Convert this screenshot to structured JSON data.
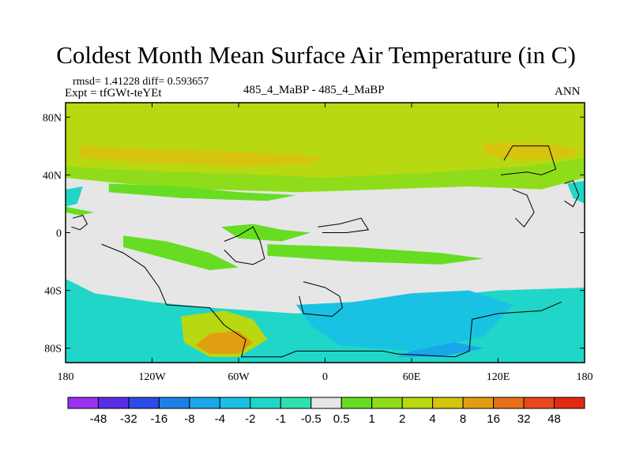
{
  "chart_data": {
    "type": "heatmap",
    "title": "Coldest Month Mean Surface Air Temperature (in C)",
    "stats_text": "rmsd= 1.41228 diff= 0.593657",
    "experiment_text": "Expt = tfGWt-teYEt",
    "comparison_text": "485_4_MaBP - 485_4_MaBP",
    "season_text": "ANN",
    "x_range": [
      -180,
      180
    ],
    "y_range": [
      -90,
      90
    ],
    "x_ticks": [
      {
        "value": -180,
        "label": "180"
      },
      {
        "value": -120,
        "label": "120W"
      },
      {
        "value": -60,
        "label": "60W"
      },
      {
        "value": 0,
        "label": "0"
      },
      {
        "value": 60,
        "label": "60E"
      },
      {
        "value": 120,
        "label": "120E"
      },
      {
        "value": 180,
        "label": "180"
      }
    ],
    "y_ticks": [
      {
        "value": 80,
        "label": "80N"
      },
      {
        "value": 40,
        "label": "40N"
      },
      {
        "value": 0,
        "label": "0"
      },
      {
        "value": -40,
        "label": "40S"
      },
      {
        "value": -80,
        "label": "80S"
      }
    ],
    "colorbar": {
      "levels": [
        "-48",
        "-32",
        "-16",
        "-8",
        "-4",
        "-2",
        "-1",
        "-0.5",
        "0.5",
        "1",
        "2",
        "4",
        "8",
        "16",
        "32",
        "48"
      ],
      "colors": [
        "#9b30f0",
        "#5a2ee6",
        "#2a4ce8",
        "#1f7fe8",
        "#1aa6ea",
        "#19c2e2",
        "#20d6c8",
        "#30e0b0",
        "#e6e6e6",
        "#66dd22",
        "#8fdd1a",
        "#b8d812",
        "#d6c40e",
        "#e29e12",
        "#e7701a",
        "#e8481e",
        "#e22a10"
      ]
    },
    "regions": [
      {
        "name": "northern-band",
        "level": 4,
        "color": "#b8d812",
        "polygon": [
          [
            -180,
            90
          ],
          [
            180,
            90
          ],
          [
            180,
            48
          ],
          [
            140,
            44
          ],
          [
            80,
            40
          ],
          [
            40,
            38
          ],
          [
            0,
            36
          ],
          [
            -40,
            38
          ],
          [
            -100,
            40
          ],
          [
            -150,
            42
          ],
          [
            -180,
            44
          ]
        ]
      },
      {
        "name": "north-warm-patch",
        "level": 8,
        "color": "#d6c40e",
        "polygon": [
          [
            -170,
            60
          ],
          [
            -120,
            58
          ],
          [
            -60,
            56
          ],
          [
            -20,
            54
          ],
          [
            0,
            52
          ],
          [
            -10,
            48
          ],
          [
            -60,
            46
          ],
          [
            -120,
            48
          ],
          [
            -170,
            52
          ]
        ]
      },
      {
        "name": "east-asia-warm-patch",
        "level": 8,
        "color": "#d6c40e",
        "polygon": [
          [
            110,
            62
          ],
          [
            150,
            62
          ],
          [
            176,
            58
          ],
          [
            170,
            52
          ],
          [
            140,
            50
          ],
          [
            110,
            54
          ]
        ]
      },
      {
        "name": "mid-lat-band",
        "level": 2,
        "color": "#8fdd1a",
        "polygon": [
          [
            -180,
            46
          ],
          [
            -150,
            44
          ],
          [
            -100,
            42
          ],
          [
            -40,
            40
          ],
          [
            0,
            38
          ],
          [
            40,
            40
          ],
          [
            80,
            42
          ],
          [
            140,
            46
          ],
          [
            170,
            50
          ],
          [
            180,
            52
          ],
          [
            180,
            38
          ],
          [
            150,
            30
          ],
          [
            100,
            32
          ],
          [
            40,
            30
          ],
          [
            -20,
            28
          ],
          [
            -80,
            30
          ],
          [
            -140,
            34
          ],
          [
            -180,
            38
          ]
        ]
      },
      {
        "name": "north-pacific-lobe",
        "level": 1,
        "color": "#66dd22",
        "polygon": [
          [
            -150,
            34
          ],
          [
            -100,
            32
          ],
          [
            -60,
            28
          ],
          [
            -20,
            26
          ],
          [
            -40,
            22
          ],
          [
            -100,
            24
          ],
          [
            -150,
            28
          ]
        ]
      },
      {
        "name": "tropical-band-north",
        "level": 1,
        "color": "#66dd22",
        "polygon": [
          [
            -180,
            18
          ],
          [
            -170,
            16
          ],
          [
            -160,
            14
          ],
          [
            -170,
            12
          ],
          [
            -180,
            14
          ]
        ]
      },
      {
        "name": "equatorial-patch-atlantic",
        "level": 1,
        "color": "#66dd22",
        "polygon": [
          [
            -72,
            4
          ],
          [
            -50,
            6
          ],
          [
            -30,
            2
          ],
          [
            -10,
            0
          ],
          [
            -30,
            -6
          ],
          [
            -60,
            -4
          ]
        ]
      },
      {
        "name": "south-pacific-band",
        "level": 1,
        "color": "#66dd22",
        "polygon": [
          [
            -140,
            -2
          ],
          [
            -110,
            -6
          ],
          [
            -80,
            -14
          ],
          [
            -60,
            -24
          ],
          [
            -80,
            -26
          ],
          [
            -110,
            -18
          ],
          [
            -140,
            -10
          ]
        ]
      },
      {
        "name": "south-atlantic-band",
        "level": 1,
        "color": "#66dd22",
        "polygon": [
          [
            -40,
            -8
          ],
          [
            20,
            -10
          ],
          [
            80,
            -14
          ],
          [
            110,
            -18
          ],
          [
            80,
            -22
          ],
          [
            20,
            -20
          ],
          [
            -40,
            -16
          ]
        ]
      },
      {
        "name": "south-cold-band",
        "level": -1,
        "color": "#20d6c8",
        "polygon": [
          [
            -180,
            -32
          ],
          [
            -160,
            -42
          ],
          [
            -120,
            -48
          ],
          [
            -80,
            -52
          ],
          [
            -20,
            -56
          ],
          [
            40,
            -52
          ],
          [
            80,
            -44
          ],
          [
            120,
            -40
          ],
          [
            180,
            -38
          ],
          [
            180,
            -90
          ],
          [
            -180,
            -90
          ]
        ]
      },
      {
        "name": "south-cold-core",
        "level": -2,
        "color": "#19c2e2",
        "polygon": [
          [
            -20,
            -50
          ],
          [
            20,
            -48
          ],
          [
            60,
            -42
          ],
          [
            100,
            -40
          ],
          [
            130,
            -50
          ],
          [
            110,
            -72
          ],
          [
            60,
            -82
          ],
          [
            10,
            -78
          ],
          [
            -10,
            -64
          ]
        ]
      },
      {
        "name": "antarctic-cold-core",
        "level": -4,
        "color": "#1aa6ea",
        "polygon": [
          [
            60,
            -82
          ],
          [
            90,
            -76
          ],
          [
            110,
            -80
          ],
          [
            80,
            -86
          ],
          [
            50,
            -86
          ]
        ]
      },
      {
        "name": "south-warm-region",
        "level": 4,
        "color": "#b8d812",
        "polygon": [
          [
            -100,
            -58
          ],
          [
            -70,
            -54
          ],
          [
            -50,
            -60
          ],
          [
            -40,
            -74
          ],
          [
            -60,
            -86
          ],
          [
            -80,
            -86
          ],
          [
            -98,
            -76
          ]
        ]
      },
      {
        "name": "south-hot-region",
        "level": 16,
        "color": "#e29e12",
        "polygon": [
          [
            -80,
            -70
          ],
          [
            -60,
            -68
          ],
          [
            -50,
            -76
          ],
          [
            -60,
            -84
          ],
          [
            -80,
            -84
          ],
          [
            -90,
            -78
          ]
        ]
      },
      {
        "name": "east-edge-cold",
        "level": -1,
        "color": "#20d6c8",
        "polygon": [
          [
            168,
            34
          ],
          [
            180,
            36
          ],
          [
            180,
            20
          ],
          [
            172,
            24
          ]
        ]
      },
      {
        "name": "west-edge-cold",
        "level": -1,
        "color": "#20d6c8",
        "polygon": [
          [
            -180,
            30
          ],
          [
            -168,
            32
          ],
          [
            -172,
            20
          ],
          [
            -180,
            18
          ]
        ]
      }
    ],
    "coastlines": [
      [
        [
          -175,
          10
        ],
        [
          -168,
          12
        ],
        [
          -165,
          6
        ],
        [
          -170,
          2
        ],
        [
          -176,
          4
        ]
      ],
      [
        [
          -155,
          -8
        ],
        [
          -140,
          -14
        ],
        [
          -125,
          -24
        ],
        [
          -115,
          -38
        ],
        [
          -110,
          -50
        ],
        [
          -80,
          -52
        ],
        [
          -70,
          -64
        ],
        [
          -55,
          -74
        ],
        [
          -58,
          -86
        ],
        [
          -30,
          -86
        ],
        [
          -20,
          -82
        ],
        [
          40,
          -82
        ],
        [
          50,
          -84
        ],
        [
          90,
          -86
        ],
        [
          100,
          -82
        ],
        [
          102,
          -60
        ],
        [
          120,
          -56
        ],
        [
          150,
          -54
        ],
        [
          164,
          -48
        ]
      ],
      [
        [
          -70,
          -6
        ],
        [
          -60,
          -2
        ],
        [
          -50,
          4
        ],
        [
          -45,
          -6
        ],
        [
          -42,
          -18
        ],
        [
          -50,
          -22
        ],
        [
          -62,
          -20
        ],
        [
          -70,
          -12
        ]
      ],
      [
        [
          -5,
          4
        ],
        [
          10,
          6
        ],
        [
          25,
          10
        ],
        [
          30,
          2
        ],
        [
          15,
          0
        ],
        [
          -2,
          0
        ]
      ],
      [
        [
          -15,
          -34
        ],
        [
          0,
          -38
        ],
        [
          10,
          -44
        ],
        [
          12,
          -52
        ],
        [
          5,
          -58
        ],
        [
          -15,
          -56
        ],
        [
          -18,
          -44
        ]
      ],
      [
        [
          122,
          40
        ],
        [
          140,
          42
        ],
        [
          150,
          40
        ],
        [
          160,
          44
        ],
        [
          155,
          60
        ],
        [
          130,
          60
        ],
        [
          124,
          50
        ]
      ],
      [
        [
          130,
          30
        ],
        [
          140,
          26
        ],
        [
          145,
          14
        ],
        [
          138,
          4
        ],
        [
          132,
          10
        ]
      ],
      [
        [
          166,
          34
        ],
        [
          172,
          36
        ],
        [
          176,
          26
        ],
        [
          172,
          18
        ],
        [
          166,
          22
        ]
      ]
    ]
  }
}
